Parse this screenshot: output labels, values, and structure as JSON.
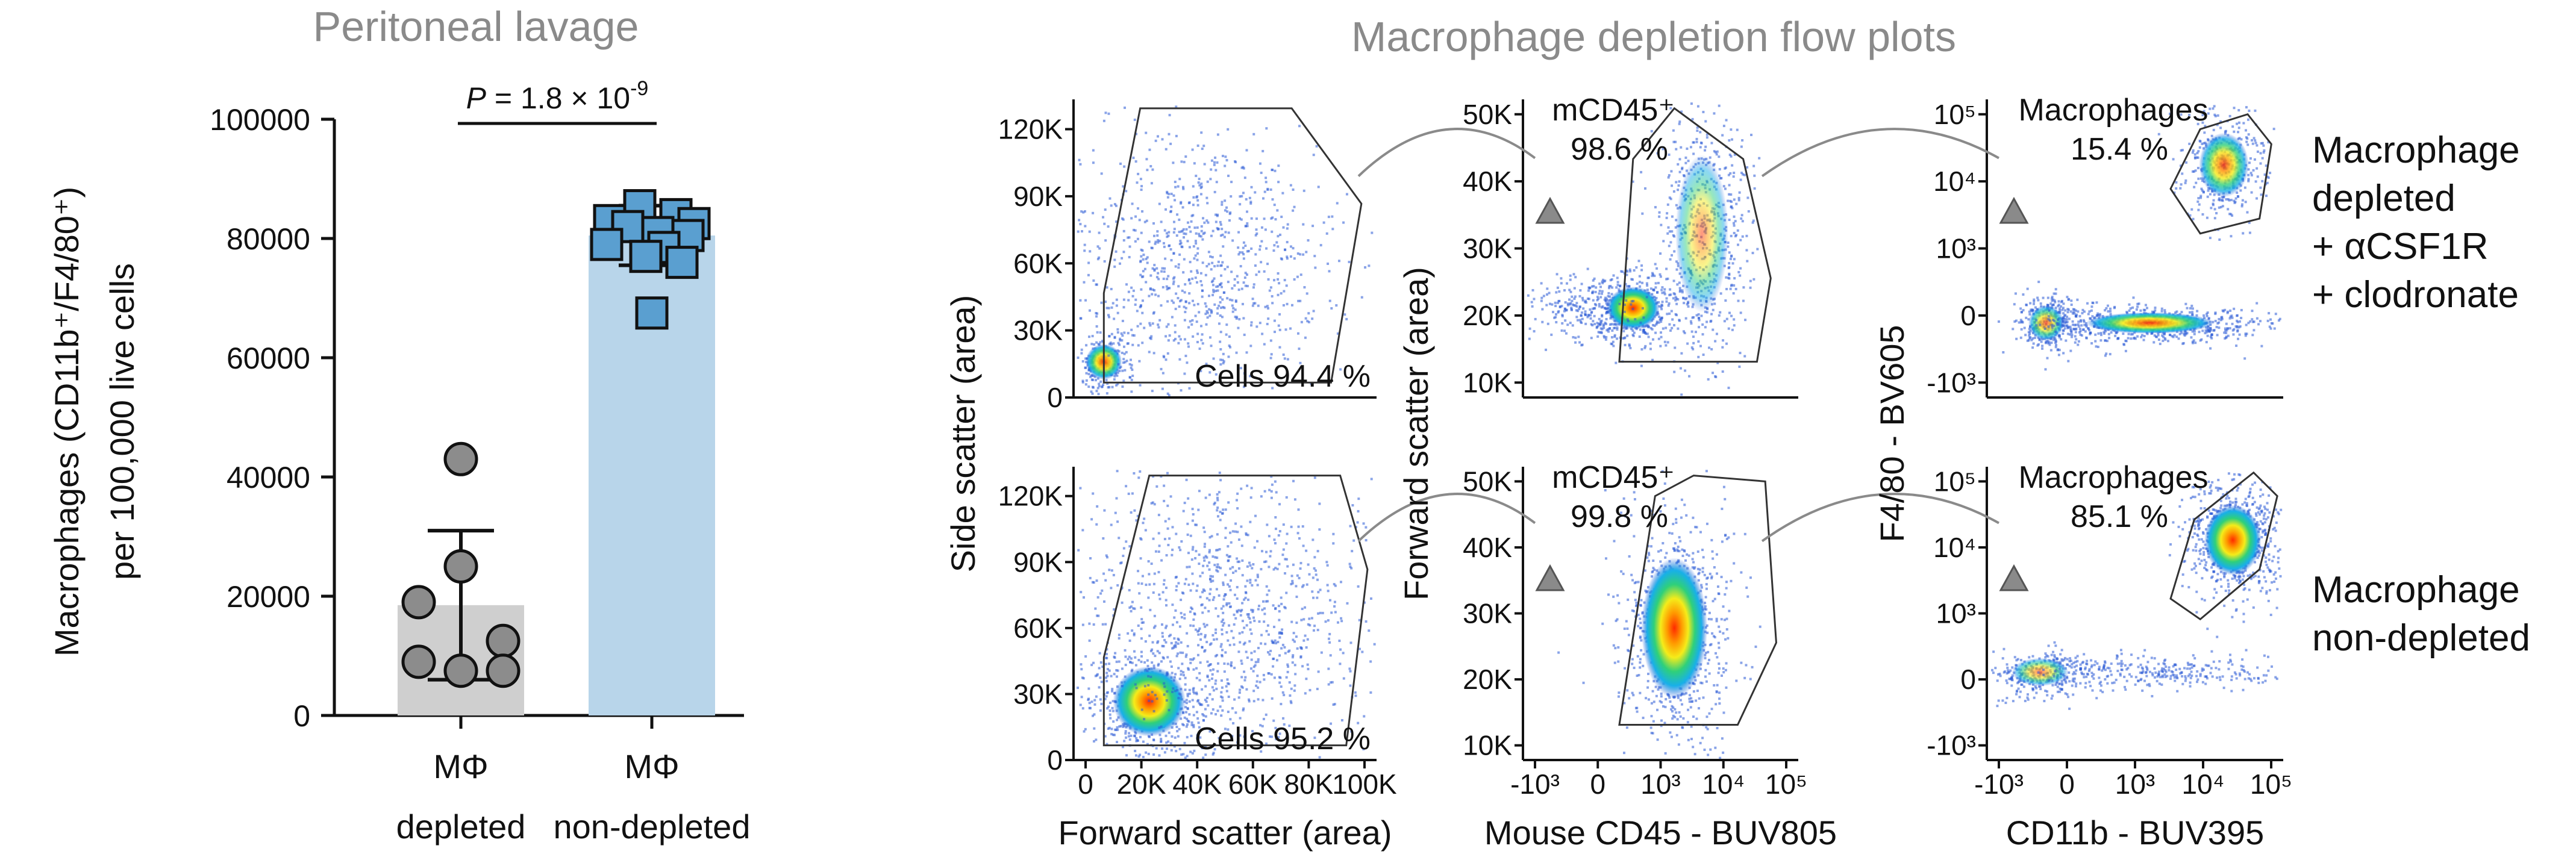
{
  "figure": {
    "left_title": "Peritoneal lavage",
    "right_title": "Macrophage depletion flow plots"
  },
  "chart_data": [
    {
      "type": "bar",
      "title": "Peritoneal lavage",
      "ylabel_line1": "Macrophages (CD11b⁺/F4/80⁺)",
      "ylabel_line2": "per 100,000 live cells",
      "ylim": [
        0,
        100000
      ],
      "yticks": [
        "0",
        "20000",
        "40000",
        "60000",
        "80000",
        "100000"
      ],
      "ytick_values": [
        0,
        20000,
        40000,
        60000,
        80000,
        100000
      ],
      "categories": [
        {
          "line1": "MΦ",
          "line2": "depleted"
        },
        {
          "line1": "MΦ",
          "line2": "non-depleted"
        }
      ],
      "bars": [
        {
          "mean": 18500,
          "sd": 12500,
          "color": "#cfcfcf",
          "marker": "circle",
          "marker_color": "#8c8c8c",
          "points": [
            43000,
            25000,
            19000,
            12500,
            9000,
            7500,
            7500
          ]
        },
        {
          "mean": 80500,
          "sd": 5000,
          "color": "#b8d5ea",
          "marker": "square",
          "marker_color": "#5a9fd0",
          "points": [
            85500,
            84000,
            83000,
            82500,
            82000,
            81000,
            80500,
            79000,
            78500,
            77000,
            76000,
            67500
          ]
        }
      ],
      "significance": {
        "text": "P = 1.8 × 10",
        "exponent": "-9"
      }
    },
    {
      "type": "scatter",
      "title": "Macrophage depletion flow plots",
      "rows": [
        {
          "label_lines": [
            "Macrophage",
            "depleted",
            "+ αCSF1R",
            "+ clodronate"
          ],
          "panels": [
            {
              "gate_label": "Cells 94.4 %",
              "gate_value": 94.4
            },
            {
              "gate_label_line1": "mCD45⁺",
              "gate_label_line2": "98.6 %",
              "gate_value": 98.6
            },
            {
              "gate_label_line1": "Macrophages",
              "gate_label_line2": "15.4 %",
              "gate_value": 15.4
            }
          ]
        },
        {
          "label_lines": [
            "Macrophage",
            "non-depleted"
          ],
          "panels": [
            {
              "gate_label": "Cells 95.2 %",
              "gate_value": 95.2
            },
            {
              "gate_label_line1": "mCD45⁺",
              "gate_label_line2": "99.8 %",
              "gate_value": 99.8
            },
            {
              "gate_label_line1": "Macrophages",
              "gate_label_line2": "85.1 %",
              "gate_value": 85.1
            }
          ]
        }
      ],
      "columns": [
        {
          "xlabel": "Forward scatter (area)",
          "ylabel": "Side scatter (area)",
          "xticks": [
            "0",
            "20K",
            "40K",
            "60K",
            "80K",
            "100K"
          ],
          "yticks": [
            "0",
            "30K",
            "60K",
            "90K",
            "120K"
          ]
        },
        {
          "xlabel": "Mouse CD45 - BUV805",
          "ylabel": "Forward scatter (area)",
          "xticks": [
            "-10³",
            "0",
            "10³",
            "10⁴",
            "10⁵"
          ],
          "yticks": [
            "10K",
            "20K",
            "30K",
            "40K",
            "50K"
          ]
        },
        {
          "xlabel": "CD11b - BUV395",
          "ylabel": "F4/80 - BV605",
          "xticks": [
            "-10³",
            "0",
            "10³",
            "10⁴",
            "10⁵"
          ],
          "yticks": [
            "-10³",
            "0",
            "10³",
            "10⁴",
            "10⁵"
          ]
        }
      ]
    }
  ]
}
